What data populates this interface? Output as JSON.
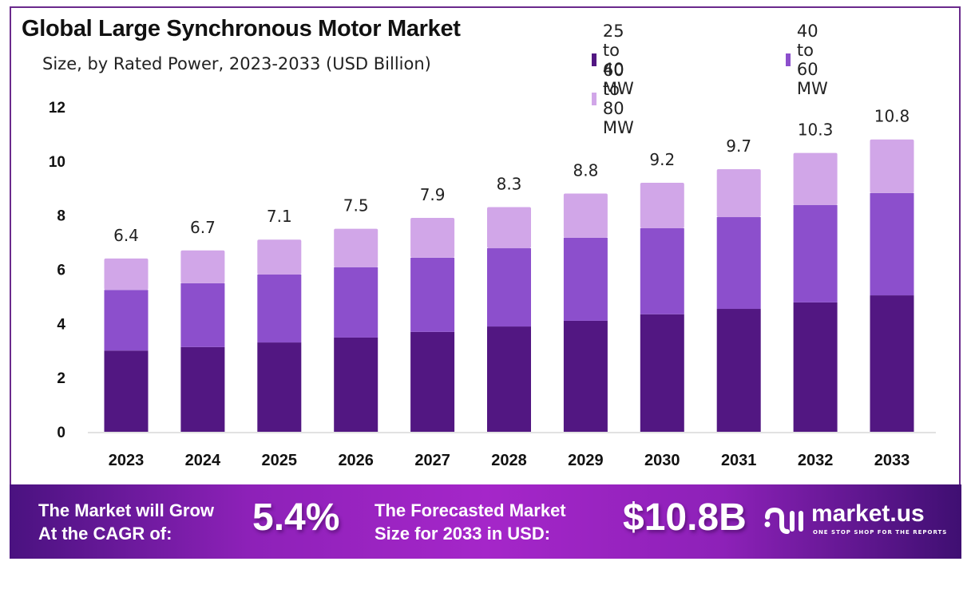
{
  "chart_data": {
    "type": "bar",
    "stacked": true,
    "title": "Global Large Synchronous Motor Market",
    "subtitle": "Size, by Rated Power, 2023-2033 (USD Billion)",
    "xlabel": "",
    "ylabel": "",
    "ylim": [
      0,
      12
    ],
    "yticks": [
      0,
      2,
      4,
      6,
      8,
      10,
      12
    ],
    "grid": false,
    "legend_position": "top-right",
    "categories": [
      "2023",
      "2024",
      "2025",
      "2026",
      "2027",
      "2028",
      "2029",
      "2030",
      "2031",
      "2032",
      "2033"
    ],
    "series": [
      {
        "name": "25 to 40 MW",
        "color": "#521782",
        "values": [
          3.0,
          3.13,
          3.3,
          3.48,
          3.69,
          3.89,
          4.1,
          4.34,
          4.54,
          4.78,
          5.04
        ]
      },
      {
        "name": "40 to 60 MW",
        "color": "#8c4fcc",
        "values": [
          2.24,
          2.36,
          2.51,
          2.6,
          2.74,
          2.89,
          3.07,
          3.18,
          3.39,
          3.6,
          3.78
        ]
      },
      {
        "name": "60 to 80 MW",
        "color": "#d1a6e8",
        "values": [
          1.16,
          1.21,
          1.29,
          1.42,
          1.47,
          1.52,
          1.63,
          1.68,
          1.77,
          1.92,
          1.98
        ]
      }
    ],
    "totals": [
      6.4,
      6.7,
      7.1,
      7.5,
      7.9,
      8.3,
      8.8,
      9.2,
      9.7,
      10.3,
      10.8
    ],
    "total_labels": [
      "6.4",
      "6.7",
      "7.1",
      "7.5",
      "7.9",
      "8.3",
      "8.8",
      "9.2",
      "9.7",
      "10.3",
      "10.8"
    ]
  },
  "legend": {
    "items": [
      {
        "label": "25 to 40 MW",
        "color": "#521782"
      },
      {
        "label": "40 to 60 MW",
        "color": "#8c4fcc"
      },
      {
        "label": "60 to 80 MW",
        "color": "#d1a6e8"
      }
    ]
  },
  "banner": {
    "cagr_text_line1": "The Market will Grow",
    "cagr_text_line2": "At the CAGR of:",
    "cagr_value": "5.4%",
    "forecast_text_line1": "The Forecasted Market",
    "forecast_text_line2": "Size for 2033 in USD:",
    "forecast_value": "$10.8B",
    "logo_name": "market.us",
    "logo_tagline": "ONE STOP SHOP FOR THE REPORTS",
    "logo_icon": "market-us-logo-icon"
  }
}
